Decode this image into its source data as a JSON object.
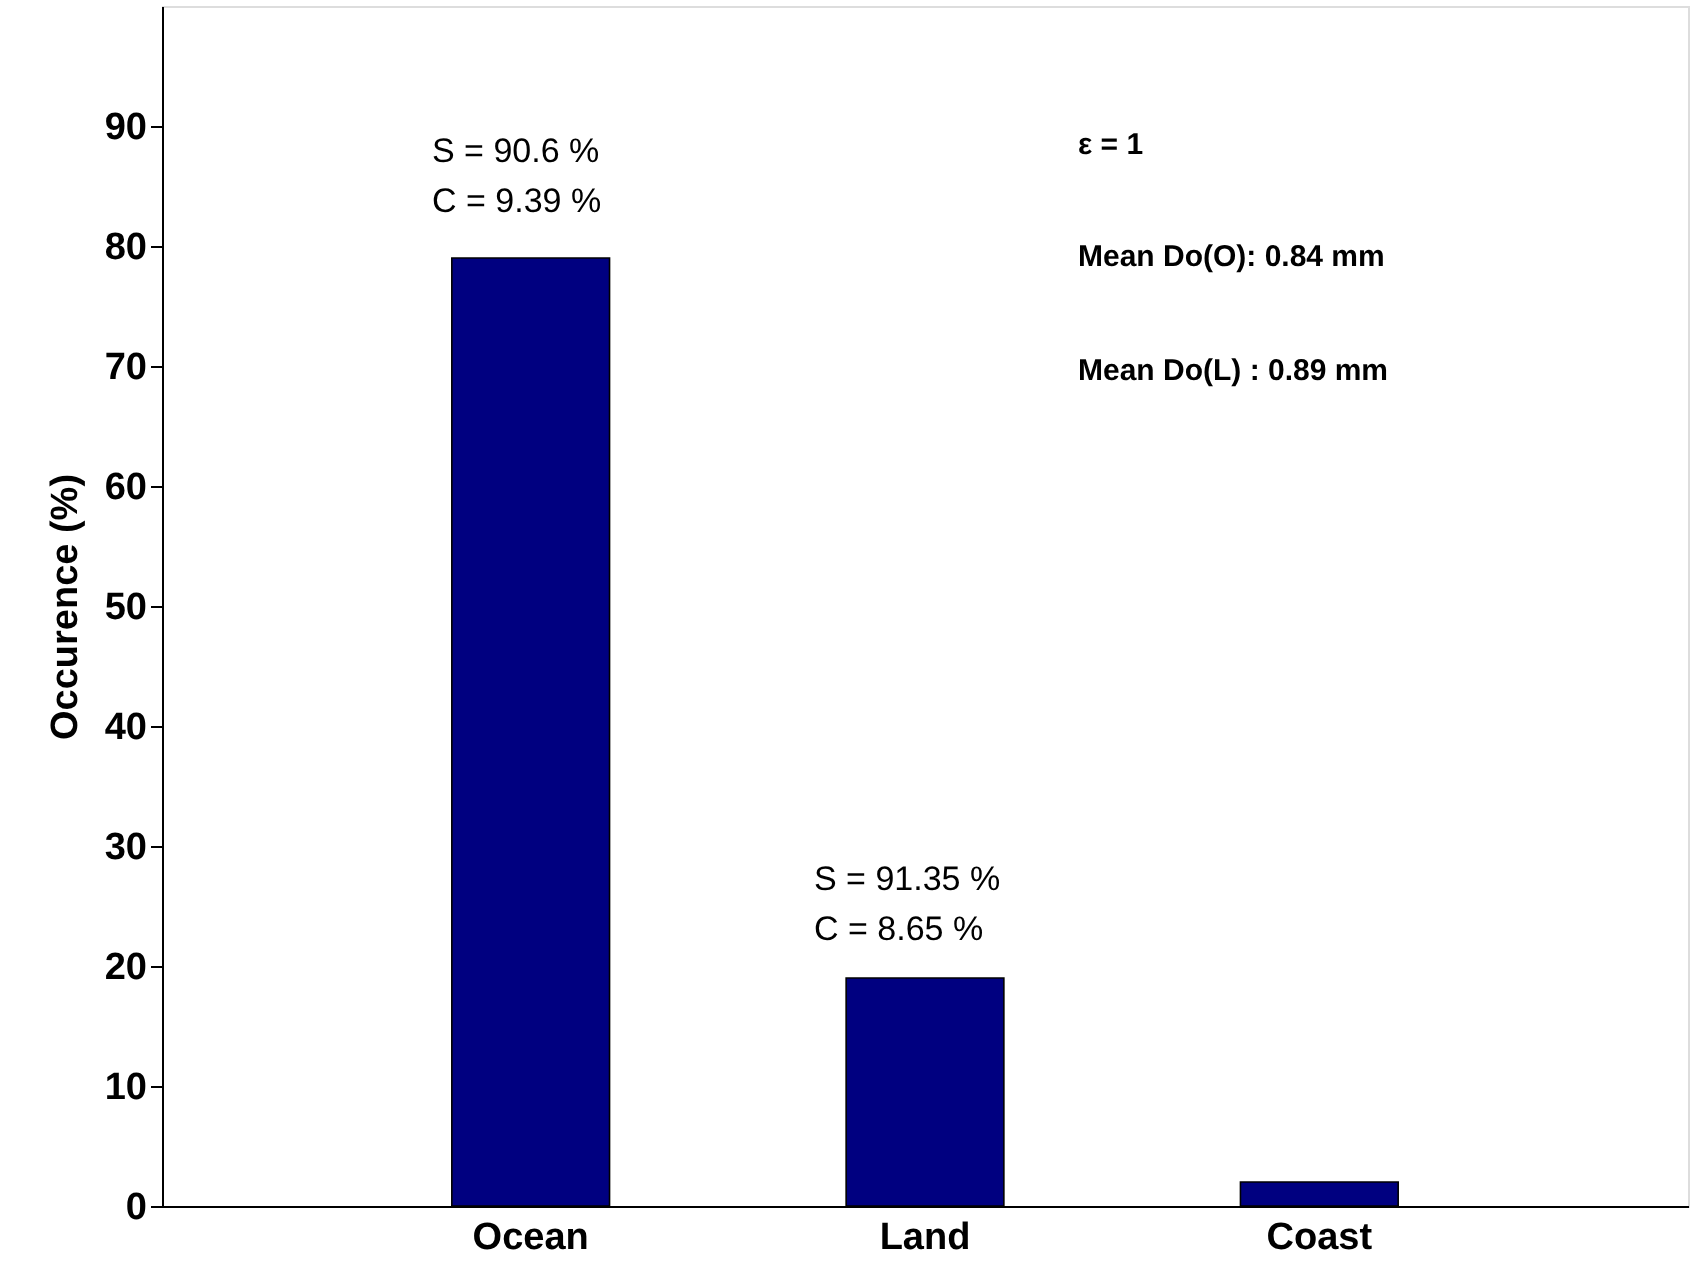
{
  "chart_data": {
    "type": "bar",
    "ylabel": "Occurence (%)",
    "categories": [
      "Ocean",
      "Land",
      "Coast"
    ],
    "values": [
      79,
      19,
      2
    ],
    "color": "#000080",
    "ylim": [
      0,
      100
    ],
    "yticks": [
      0,
      10,
      20,
      30,
      40,
      50,
      60,
      70,
      80,
      90
    ],
    "grid": false,
    "annotations": [
      "S = 90.6 %",
      "C = 9.39 %",
      "S = 91.35 %",
      "C = 8.65 %",
      "ε = 1",
      "Mean Do(O): 0.84 mm",
      "Mean Do(L) : 0.89 mm"
    ]
  }
}
